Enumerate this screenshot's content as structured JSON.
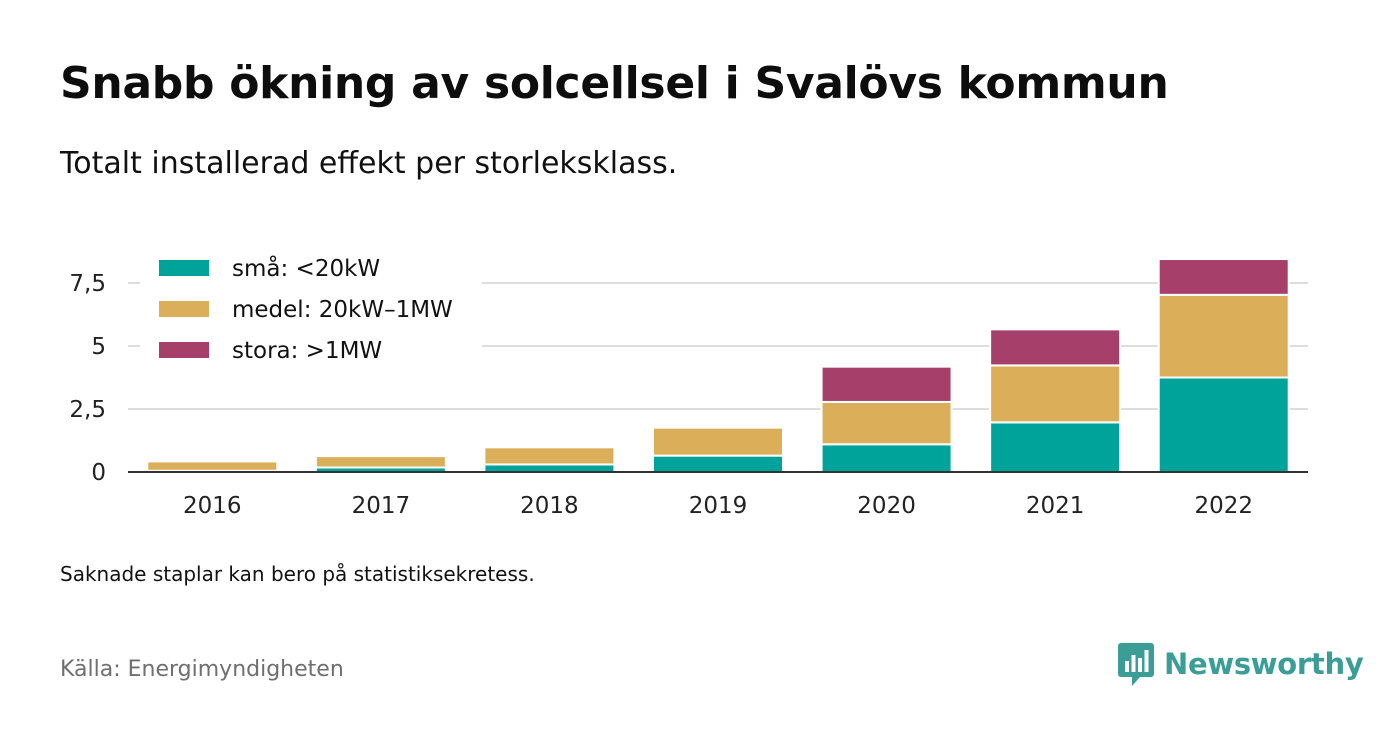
{
  "header": {
    "title": "Snabb ökning av solcellsel i Svalövs kommun",
    "subtitle": "Totalt installerad effekt per storleksklass."
  },
  "footer": {
    "note": "Saknade staplar kan bero på statistiksekretess.",
    "source": "Källa: Energimyndigheten",
    "brand": "Newsworthy",
    "brand_color": "#3a9e96"
  },
  "chart_data": {
    "type": "bar",
    "stacked": true,
    "categories": [
      "2016",
      "2017",
      "2018",
      "2019",
      "2020",
      "2021",
      "2022"
    ],
    "series": [
      {
        "name": "små: <20kW",
        "color": "#00a39a",
        "values": [
          0.05,
          0.18,
          0.3,
          0.65,
          1.1,
          1.97,
          3.75
        ]
      },
      {
        "name": "medel: 20kW–1MW",
        "color": "#dbae5a",
        "values": [
          0.37,
          0.45,
          0.68,
          1.11,
          1.68,
          2.26,
          3.28
        ]
      },
      {
        "name": "stora: >1MW",
        "color": "#a6406a",
        "values": [
          0,
          0,
          0,
          0,
          1.4,
          1.43,
          1.42
        ]
      }
    ],
    "yticks": [
      {
        "value": 0,
        "label": "0"
      },
      {
        "value": 2.5,
        "label": "2,5"
      },
      {
        "value": 5,
        "label": "5"
      },
      {
        "value": 7.5,
        "label": "7,5"
      }
    ],
    "ylim": [
      0,
      8.6
    ],
    "xlabel": "",
    "ylabel": "",
    "grid": true,
    "legend_position": "top-left"
  }
}
